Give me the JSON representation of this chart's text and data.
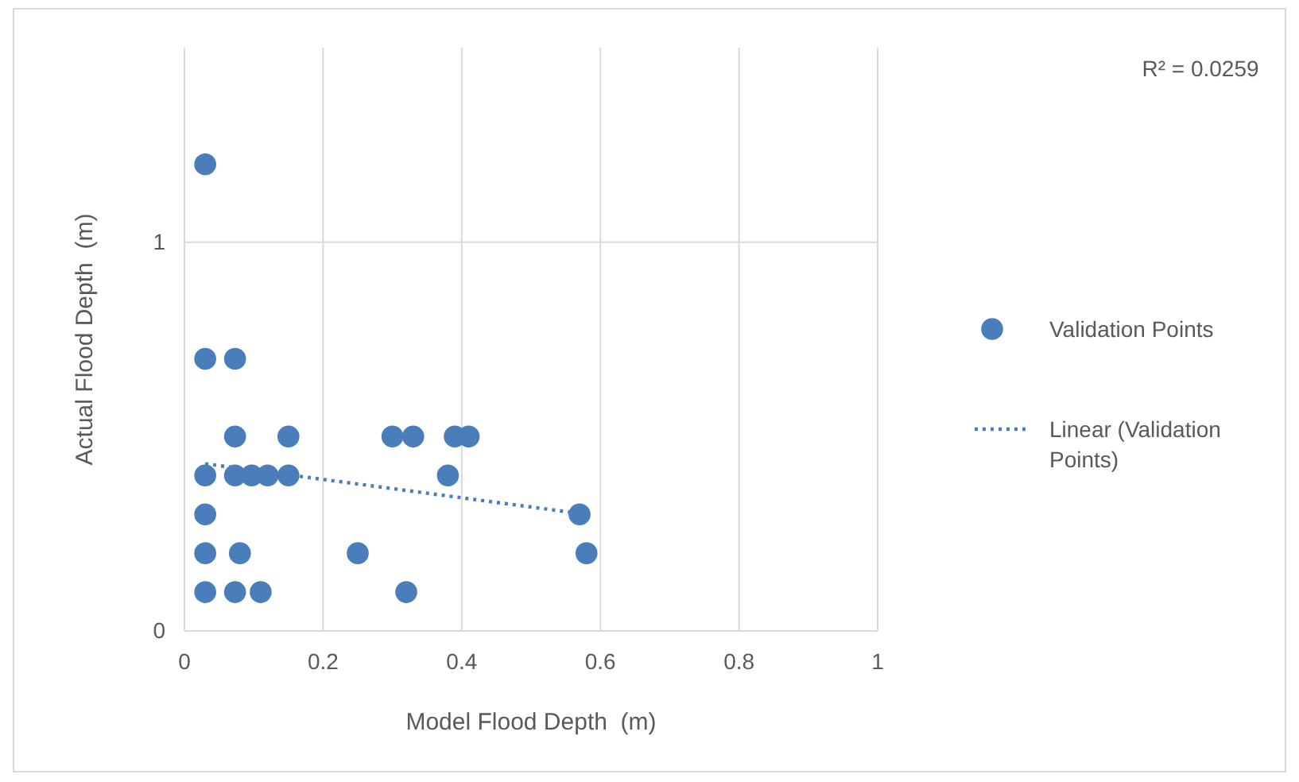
{
  "chart_data": {
    "type": "scatter",
    "xlabel": "Model Flood Depth  (m)",
    "ylabel": "Actual Flood Depth  (m)",
    "annotations": [
      "R² = 0.0259"
    ],
    "xlim": [
      0,
      1
    ],
    "xticks": [
      0,
      0.2,
      0.4,
      0.6,
      0.8,
      1
    ],
    "ylim": [
      0,
      1.5
    ],
    "yticks": [
      0,
      1
    ],
    "grid": true,
    "legend": "right",
    "series": [
      {
        "name": "Validation Points",
        "color": "#4a7ebb",
        "marker": "circle",
        "x": [
          0.03,
          0.03,
          0.073,
          0.073,
          0.15,
          0.3,
          0.33,
          0.39,
          0.41,
          0.03,
          0.073,
          0.097,
          0.12,
          0.15,
          0.38,
          0.03,
          0.57,
          0.03,
          0.08,
          0.25,
          0.58,
          0.03,
          0.073,
          0.11,
          0.32
        ],
        "values": [
          1.2,
          0.7,
          0.7,
          0.5,
          0.5,
          0.5,
          0.5,
          0.5,
          0.5,
          0.4,
          0.4,
          0.4,
          0.4,
          0.4,
          0.4,
          0.3,
          0.3,
          0.2,
          0.2,
          0.2,
          0.2,
          0.1,
          0.1,
          0.1,
          0.1
        ]
      },
      {
        "name": "Linear (Validation Points)",
        "type": "line",
        "color": "#4a7ebb",
        "marker": "none",
        "line_style": "dotted",
        "x": [
          0.03,
          0.58
        ],
        "values": [
          0.43,
          0.3
        ]
      }
    ]
  }
}
